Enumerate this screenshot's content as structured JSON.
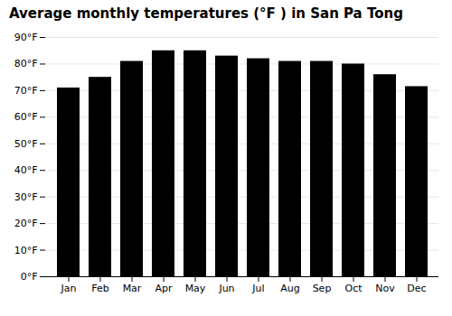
{
  "chart_data": {
    "type": "bar",
    "title": "Average monthly temperatures (°F ) in San Pa Tong",
    "categories": [
      "Jan",
      "Feb",
      "Mar",
      "Apr",
      "May",
      "Jun",
      "Jul",
      "Aug",
      "Sep",
      "Oct",
      "Nov",
      "Dec"
    ],
    "values": [
      71,
      75,
      81,
      85,
      85,
      83,
      82,
      81,
      81,
      80,
      76,
      71.5
    ],
    "ylim": [
      0,
      90
    ],
    "yticks": [
      {
        "value": 0,
        "label": "0°F"
      },
      {
        "value": 10,
        "label": "10°F"
      },
      {
        "value": 20,
        "label": "20°F"
      },
      {
        "value": 30,
        "label": "30°F"
      },
      {
        "value": 40,
        "label": "40°F"
      },
      {
        "value": 50,
        "label": "50°F"
      },
      {
        "value": 60,
        "label": "60°F"
      },
      {
        "value": 70,
        "label": "70°F"
      },
      {
        "value": 80,
        "label": "80°F"
      },
      {
        "value": 90,
        "label": "90°F"
      }
    ],
    "grid": true
  }
}
